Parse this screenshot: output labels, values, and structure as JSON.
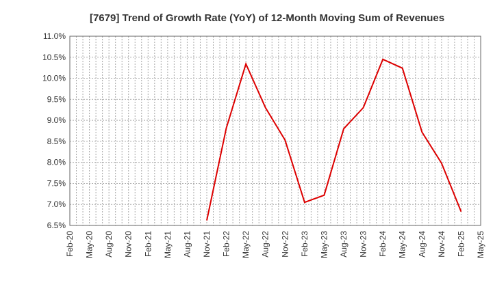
{
  "chart_data": {
    "type": "line",
    "title": "[7679]  Trend of Growth Rate (YoY) of 12-Month Moving Sum of Revenues",
    "xlabel": "",
    "ylabel": "",
    "ylim": [
      6.5,
      11.0
    ],
    "y_ticks": [
      "6.5%",
      "7.0%",
      "7.5%",
      "8.0%",
      "8.5%",
      "9.0%",
      "9.5%",
      "10.0%",
      "10.5%",
      "11.0%"
    ],
    "x_ticks": [
      "Feb-20",
      "May-20",
      "Aug-20",
      "Nov-20",
      "Feb-21",
      "May-21",
      "Aug-21",
      "Nov-21",
      "Feb-22",
      "May-22",
      "Aug-22",
      "Nov-22",
      "Feb-23",
      "May-23",
      "Aug-23",
      "Nov-23",
      "Feb-24",
      "May-24",
      "Aug-24",
      "Nov-24",
      "Feb-25",
      "May-25"
    ],
    "grid": true,
    "legend": "none",
    "color": "#dd0000",
    "series": [
      {
        "x": [
          "Nov-21",
          "Feb-22",
          "May-22",
          "Aug-22",
          "Nov-22",
          "Feb-23",
          "May-23",
          "Aug-23",
          "Nov-23",
          "Feb-24",
          "May-24",
          "Aug-24",
          "Nov-24",
          "Feb-25"
        ],
        "values": [
          6.62,
          8.82,
          10.34,
          9.3,
          8.53,
          7.05,
          7.22,
          8.8,
          9.3,
          10.45,
          10.24,
          8.72,
          7.98,
          6.83
        ]
      }
    ]
  }
}
